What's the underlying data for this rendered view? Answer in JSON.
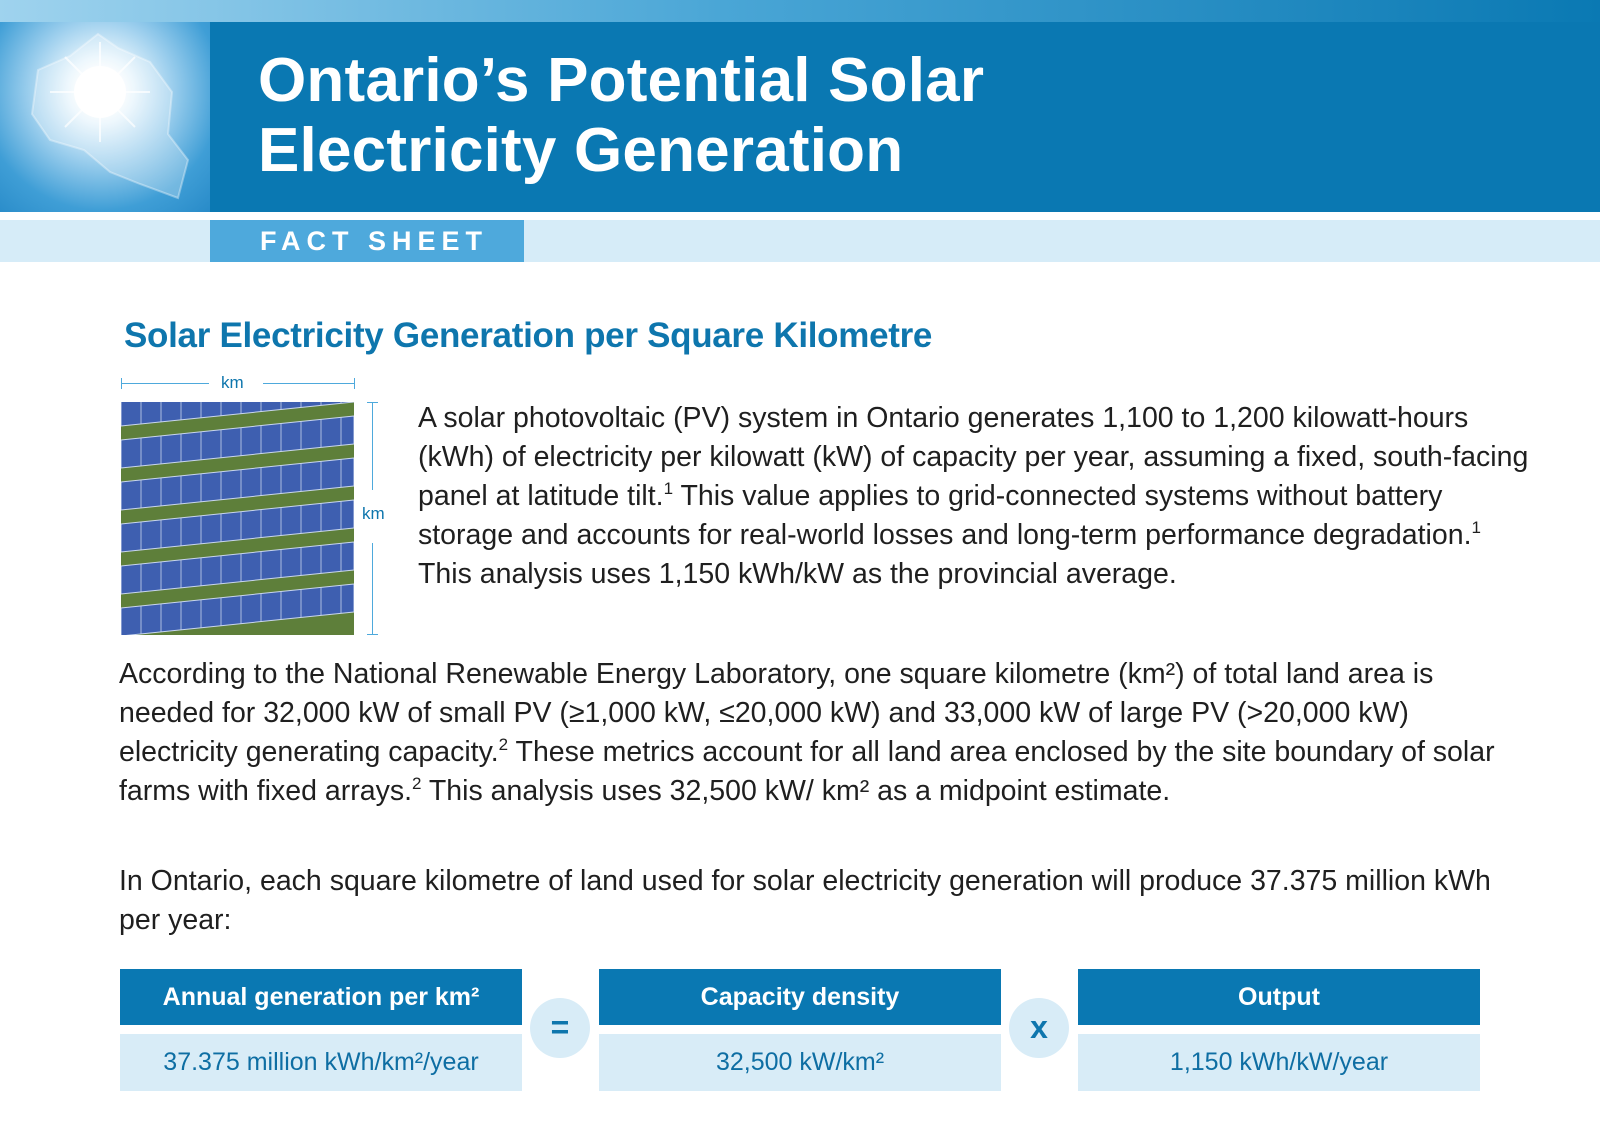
{
  "header": {
    "title_line1": "Ontario’s Potential Solar",
    "title_line2": "Electricity Generation",
    "tag": "FACT SHEET"
  },
  "section": {
    "title": "Solar Electricity Generation per Square Kilometre",
    "dimension_label_top": "km",
    "dimension_label_side": "km"
  },
  "paragraph1": {
    "text_a": "A solar photovoltaic (PV) system in Ontario generates 1,100 to 1,200 kilowatt-hours (kWh) of electricity per kilowatt (kW) of capacity per year, assuming a fixed, south-facing panel at latitude tilt.",
    "sup_a": "1",
    "text_b": " This value applies to grid-connected systems without battery storage and accounts for real-world losses and long-term performance degradation.",
    "sup_b": "1",
    "text_c": " This analysis uses 1,150 kWh/kW as the provincial average."
  },
  "paragraph2": {
    "text_a": "According to the National Renewable Energy Laboratory, one square kilometre (km²) of total land area is needed for 32,000 kW of small PV (≥1,000 kW, ≤20,000 kW) and 33,000 kW of large PV (>20,000 kW) electricity generating capacity.",
    "sup_a": "2",
    "text_b": " These metrics account for all land area enclosed by the site boundary of solar farms with fixed arrays.",
    "sup_b": "2",
    "text_c": " This analysis uses 32,500 kW/ km² as a midpoint estimate."
  },
  "paragraph3": {
    "text": "In Ontario, each square kilometre of land used for solar electricity generation will produce 37.375 million kWh per year:"
  },
  "equation": {
    "columns": [
      {
        "header": "Annual generation per km²",
        "value": "37.375 million kWh/km²/year"
      },
      {
        "header": "Capacity density",
        "value": "32,500 kW/km²"
      },
      {
        "header": "Output",
        "value": "1,150 kWh/kW/year"
      }
    ],
    "operators": [
      "=",
      "x"
    ]
  },
  "icons": {
    "header_graphic": "ontario-sun-icon",
    "photo": "solar-panels-photo"
  },
  "colors": {
    "primary_blue": "#0a78b2",
    "accent_blue": "#4ea9dc",
    "light_blue": "#d8ecf7",
    "heading_blue": "#0e76ad"
  }
}
